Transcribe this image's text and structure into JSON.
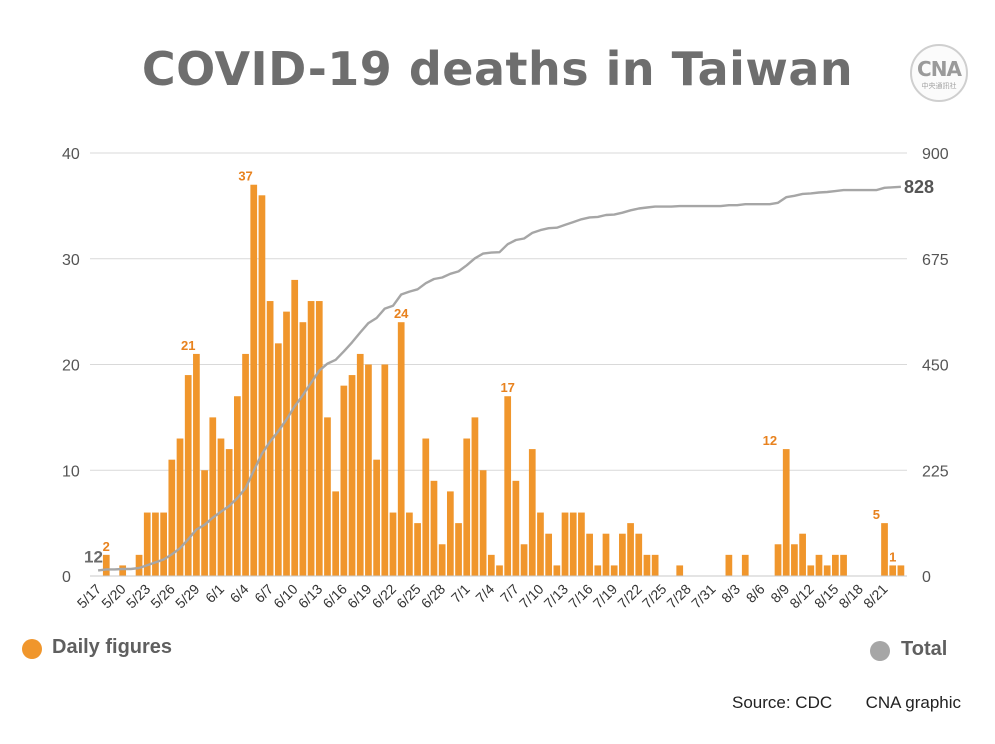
{
  "header": {
    "title": "COVID-19 deaths in Taiwan",
    "logo_text": "CNA",
    "logo_subtext": "中央通訊社"
  },
  "legend": {
    "daily_label": "Daily figures",
    "total_label": "Total"
  },
  "footer": {
    "source": "Source: CDC",
    "credit": "CNA graphic"
  },
  "colors": {
    "bar": "#f0962c",
    "line": "#a6a6a6",
    "grid": "#d9d9d9",
    "axis_text": "#555555",
    "label": "#e8821e"
  },
  "chart_data": {
    "type": "bar+line",
    "title": "COVID-19 deaths in Taiwan",
    "x_labels": [
      "5/17",
      "5/20",
      "5/23",
      "5/26",
      "5/29",
      "6/1",
      "6/4",
      "6/7",
      "6/10",
      "6/13",
      "6/16",
      "6/19",
      "6/22",
      "6/25",
      "6/28",
      "7/1",
      "7/4",
      "7/7",
      "7/10",
      "7/13",
      "7/16",
      "7/19",
      "7/22",
      "7/25",
      "7/28",
      "7/31",
      "8/3",
      "8/6",
      "8/9",
      "8/12",
      "8/15",
      "8/18",
      "8/21"
    ],
    "first_date": "5/17",
    "last_date": "8/21",
    "y_left": {
      "ticks": [
        0,
        10,
        20,
        30,
        40
      ],
      "range": [
        0,
        40
      ]
    },
    "y_right": {
      "ticks": [
        0,
        225,
        450,
        675,
        900
      ],
      "range": [
        0,
        900
      ]
    },
    "series": [
      {
        "name": "Daily figures",
        "kind": "bar",
        "axis": "left",
        "values": [
          0,
          2,
          0,
          1,
          0,
          2,
          6,
          6,
          6,
          11,
          13,
          19,
          21,
          10,
          15,
          13,
          12,
          17,
          21,
          37,
          36,
          26,
          22,
          25,
          28,
          24,
          26,
          26,
          15,
          8,
          18,
          19,
          21,
          20,
          11,
          20,
          6,
          24,
          6,
          5,
          13,
          9,
          3,
          8,
          5,
          13,
          15,
          10,
          2,
          1,
          17,
          9,
          3,
          12,
          6,
          4,
          1,
          6,
          6,
          6,
          4,
          1,
          4,
          1,
          4,
          5,
          4,
          2,
          2,
          0,
          0,
          1,
          0,
          0,
          0,
          0,
          0,
          2,
          0,
          2,
          0,
          0,
          0,
          3,
          12,
          3,
          4,
          1,
          2,
          1,
          2,
          2,
          0,
          0,
          0,
          0,
          5,
          1,
          1
        ],
        "labeled_points": [
          {
            "date": "5/18",
            "value": 2
          },
          {
            "date": "5/28",
            "value": 21
          },
          {
            "date": "6/4",
            "value": 37
          },
          {
            "date": "6/23",
            "value": 24
          },
          {
            "date": "7/6",
            "value": 17
          },
          {
            "date": "8/7",
            "value": 12
          },
          {
            "date": "8/20",
            "value": 5
          },
          {
            "date": "8/22",
            "value": 1
          }
        ]
      },
      {
        "name": "Total",
        "kind": "line",
        "axis": "right",
        "values": [
          12,
          14,
          14,
          15,
          15,
          17,
          23,
          29,
          35,
          46,
          59,
          78,
          99,
          109,
          124,
          137,
          149,
          166,
          187,
          224,
          260,
          286,
          308,
          333,
          361,
          385,
          411,
          437,
          452,
          460,
          478,
          497,
          518,
          538,
          549,
          569,
          575,
          599,
          605,
          610,
          623,
          632,
          635,
          643,
          648,
          661,
          676,
          686,
          688,
          689,
          706,
          715,
          718,
          730,
          736,
          740,
          741,
          747,
          753,
          759,
          763,
          764,
          768,
          769,
          773,
          778,
          782,
          784,
          786,
          786,
          786,
          787,
          787,
          787,
          787,
          787,
          787,
          789,
          789,
          791,
          791,
          791,
          791,
          794,
          806,
          809,
          813,
          814,
          816,
          817,
          819,
          821,
          821,
          821,
          821,
          821,
          826,
          827,
          828
        ],
        "end_label": "828",
        "start_label": "12"
      }
    ]
  }
}
